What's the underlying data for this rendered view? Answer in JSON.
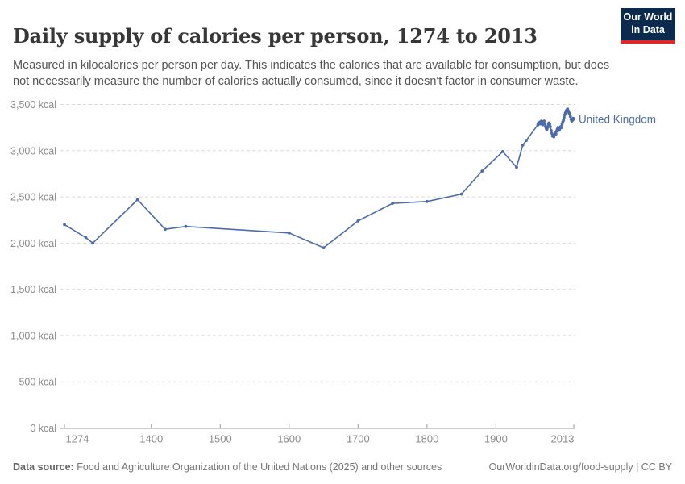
{
  "header": {
    "title": "Daily supply of calories per person, 1274 to 2013",
    "subtitle": "Measured in kilocalories per person per day. This indicates the calories that are available for consumption, but does not necessarily measure the number of calories actually consumed, since it doesn't factor in consumer waste.",
    "logo": {
      "line1": "Our World",
      "line2": "in Data",
      "bg_color": "#0c2a4d",
      "accent_color": "#dc2828"
    }
  },
  "chart_data": {
    "type": "line",
    "title": "Daily supply of calories per person, 1274 to 2013",
    "unit": "kcal",
    "xlim": [
      1274,
      2013
    ],
    "ylim": [
      0,
      3500
    ],
    "x_ticks": [
      1274,
      1400,
      1500,
      1600,
      1700,
      1800,
      1900,
      2013
    ],
    "y_ticks": [
      0,
      500,
      1000,
      1500,
      2000,
      2500,
      3000,
      3500
    ],
    "y_tick_suffix": " kcal",
    "grid": "dashed-horizontal",
    "legend_position": "end-of-line-label",
    "colors": {
      "line": "#4c6ba8",
      "gridline": "#dadada",
      "axis": "#999999",
      "tick_label": "#8b8b8b"
    },
    "series": [
      {
        "name": "United Kingdom",
        "points": [
          [
            1274,
            2200
          ],
          [
            1305,
            2060
          ],
          [
            1315,
            2000
          ],
          [
            1380,
            2470
          ],
          [
            1420,
            2150
          ],
          [
            1450,
            2180
          ],
          [
            1600,
            2110
          ],
          [
            1650,
            1950
          ],
          [
            1700,
            2240
          ],
          [
            1750,
            2430
          ],
          [
            1800,
            2450
          ],
          [
            1850,
            2530
          ],
          [
            1880,
            2780
          ],
          [
            1910,
            2990
          ],
          [
            1930,
            2820
          ],
          [
            1939,
            3060
          ],
          [
            1944,
            3110
          ],
          [
            1961,
            3280
          ],
          [
            1962,
            3300
          ],
          [
            1963,
            3290
          ],
          [
            1964,
            3310
          ],
          [
            1965,
            3290
          ],
          [
            1966,
            3320
          ],
          [
            1967,
            3300
          ],
          [
            1968,
            3280
          ],
          [
            1969,
            3310
          ],
          [
            1970,
            3320
          ],
          [
            1971,
            3290
          ],
          [
            1972,
            3260
          ],
          [
            1973,
            3240
          ],
          [
            1974,
            3230
          ],
          [
            1975,
            3250
          ],
          [
            1976,
            3280
          ],
          [
            1977,
            3300
          ],
          [
            1978,
            3290
          ],
          [
            1979,
            3260
          ],
          [
            1980,
            3220
          ],
          [
            1981,
            3190
          ],
          [
            1982,
            3160
          ],
          [
            1983,
            3170
          ],
          [
            1984,
            3150
          ],
          [
            1985,
            3170
          ],
          [
            1986,
            3190
          ],
          [
            1987,
            3180
          ],
          [
            1988,
            3210
          ],
          [
            1989,
            3230
          ],
          [
            1990,
            3250
          ],
          [
            1991,
            3230
          ],
          [
            1992,
            3220
          ],
          [
            1993,
            3240
          ],
          [
            1994,
            3260
          ],
          [
            1995,
            3250
          ],
          [
            1996,
            3290
          ],
          [
            1997,
            3310
          ],
          [
            1998,
            3330
          ],
          [
            1999,
            3360
          ],
          [
            2000,
            3390
          ],
          [
            2001,
            3410
          ],
          [
            2002,
            3430
          ],
          [
            2003,
            3440
          ],
          [
            2004,
            3450
          ],
          [
            2005,
            3430
          ],
          [
            2006,
            3410
          ],
          [
            2007,
            3400
          ],
          [
            2008,
            3370
          ],
          [
            2009,
            3340
          ],
          [
            2010,
            3320
          ],
          [
            2011,
            3330
          ],
          [
            2012,
            3350
          ],
          [
            2013,
            3340
          ]
        ]
      }
    ]
  },
  "footer": {
    "source_label": "Data source:",
    "source_text": " Food and Agriculture Organization of the United Nations (2025) and other sources",
    "attribution": "OurWorldinData.org/food-supply | CC BY"
  }
}
